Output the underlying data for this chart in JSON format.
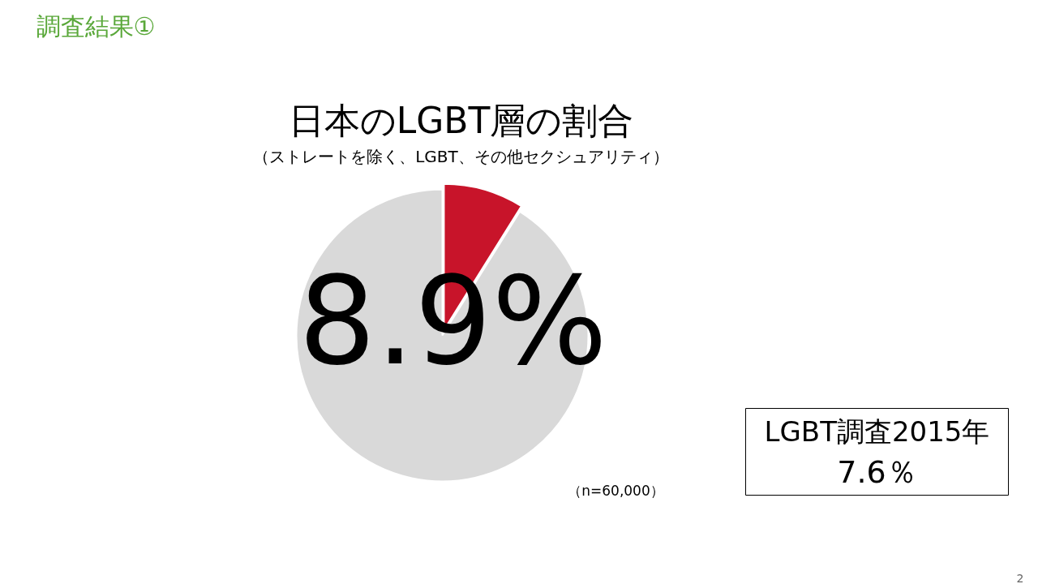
{
  "chart_data": {
    "type": "pie",
    "title": "日本のLGBT層の割合",
    "subtitle": "（ストレートを除く、LGBT、その他セクシュアリティ）",
    "categories": [
      null,
      null
    ],
    "values": [
      8.9,
      91.1
    ],
    "colors": [
      "#c8142a",
      "#d9d9d9"
    ],
    "value_labels": [
      "8.9%",
      null
    ],
    "annotations": [
      "調査結果①",
      "（n=60,000）",
      "LGBT調査2015年\n7.6％",
      "2"
    ]
  }
}
